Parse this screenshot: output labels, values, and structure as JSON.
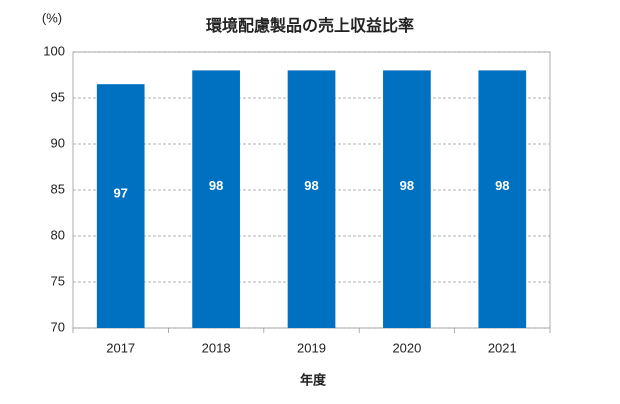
{
  "chart_data": {
    "type": "bar",
    "title": "環境配慮製品の売上収益比率",
    "y_unit": "(%)",
    "x_label": "年度",
    "categories": [
      "2017",
      "2018",
      "2019",
      "2020",
      "2021"
    ],
    "values": [
      96.5,
      98,
      98,
      98,
      98
    ],
    "value_labels": [
      "97",
      "98",
      "98",
      "98",
      "98"
    ],
    "color": "#0070c0",
    "ylim": [
      70,
      100
    ],
    "yticks": [
      70,
      75,
      80,
      85,
      90,
      95,
      100
    ],
    "grid": true
  }
}
